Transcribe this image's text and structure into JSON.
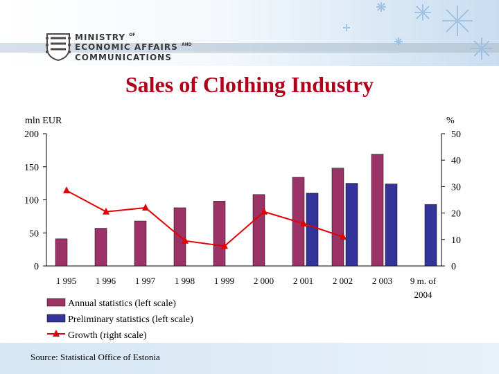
{
  "header": {
    "ministry_line1": "MINISTRY",
    "ministry_line1_small": "OF",
    "ministry_line2": "ECONOMIC AFFAIRS",
    "ministry_line2_small": "AND",
    "ministry_line3": "COMMUNICATIONS"
  },
  "footer": {
    "source": "Source: Statistical Office of Estonia"
  },
  "colors": {
    "title": "#b0001a",
    "annual": "#9b3366",
    "preliminary": "#33339a",
    "growth": "#e00000"
  },
  "chart_data": {
    "type": "bar",
    "title": "Sales of Clothing Industry",
    "ylabel_left": "mln EUR",
    "ylabel_right": "%",
    "ylim_left": [
      0,
      200
    ],
    "ylim_right": [
      0,
      50
    ],
    "yticks_left": [
      "0",
      "50",
      "100",
      "150",
      "200"
    ],
    "yticks_right": [
      "0",
      "10",
      "20",
      "30",
      "40",
      "50"
    ],
    "categories": [
      "1 995",
      "1 996",
      "1 997",
      "1 998",
      "1 999",
      "2 000",
      "2 001",
      "2 002",
      "2 003",
      "9 m. of 2004"
    ],
    "series": [
      {
        "name": "Annual statistics (left scale)",
        "type": "bar",
        "axis": "left",
        "values": [
          41,
          57,
          68,
          88,
          98,
          108,
          134,
          148,
          169,
          null
        ]
      },
      {
        "name": "Preliminary statistics (left scale)",
        "type": "bar",
        "axis": "left",
        "values": [
          null,
          null,
          null,
          null,
          null,
          null,
          110,
          125,
          124,
          93
        ]
      },
      {
        "name": "Growth (right scale)",
        "type": "line",
        "axis": "right",
        "values": [
          28.5,
          20.5,
          22,
          9.5,
          7.5,
          20.5,
          16,
          11,
          null,
          null
        ]
      }
    ],
    "legend_position": "bottom-left",
    "grid": false
  }
}
